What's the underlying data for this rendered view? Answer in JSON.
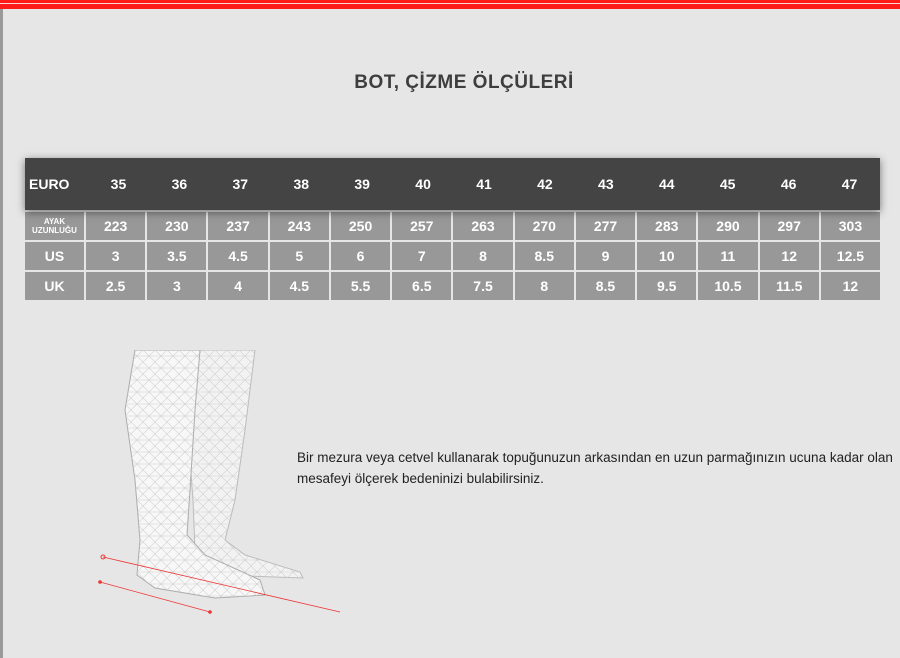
{
  "title": "BOT, ÇİZME ÖLÇÜLERİ",
  "table": {
    "header_label": "EURO",
    "euro": [
      "35",
      "36",
      "37",
      "38",
      "39",
      "40",
      "41",
      "42",
      "43",
      "44",
      "45",
      "46",
      "47"
    ],
    "rows": [
      {
        "label_line1": "AYAK",
        "label_line2": "UZUNLUĞU",
        "values": [
          "223",
          "230",
          "237",
          "243",
          "250",
          "257",
          "263",
          "270",
          "277",
          "283",
          "290",
          "297",
          "303"
        ]
      },
      {
        "label": "US",
        "values": [
          "3",
          "3.5",
          "4.5",
          "5",
          "6",
          "7",
          "8",
          "8.5",
          "9",
          "10",
          "11",
          "12",
          "12.5"
        ]
      },
      {
        "label": "UK",
        "values": [
          "2.5",
          "3",
          "4",
          "4.5",
          "5.5",
          "6.5",
          "7.5",
          "8",
          "8.5",
          "9.5",
          "10.5",
          "11.5",
          "12"
        ]
      }
    ]
  },
  "description": "Bir mezura veya cetvel kullanarak topuğunuzun arkasından en uzun parmağınızın ucuna kadar olan mesafeyi ölçerek bedeninizi bulabilirsiniz.",
  "colors": {
    "accent": "#ff1a1a",
    "header_bg": "#444444",
    "cell_bg": "#989898"
  }
}
